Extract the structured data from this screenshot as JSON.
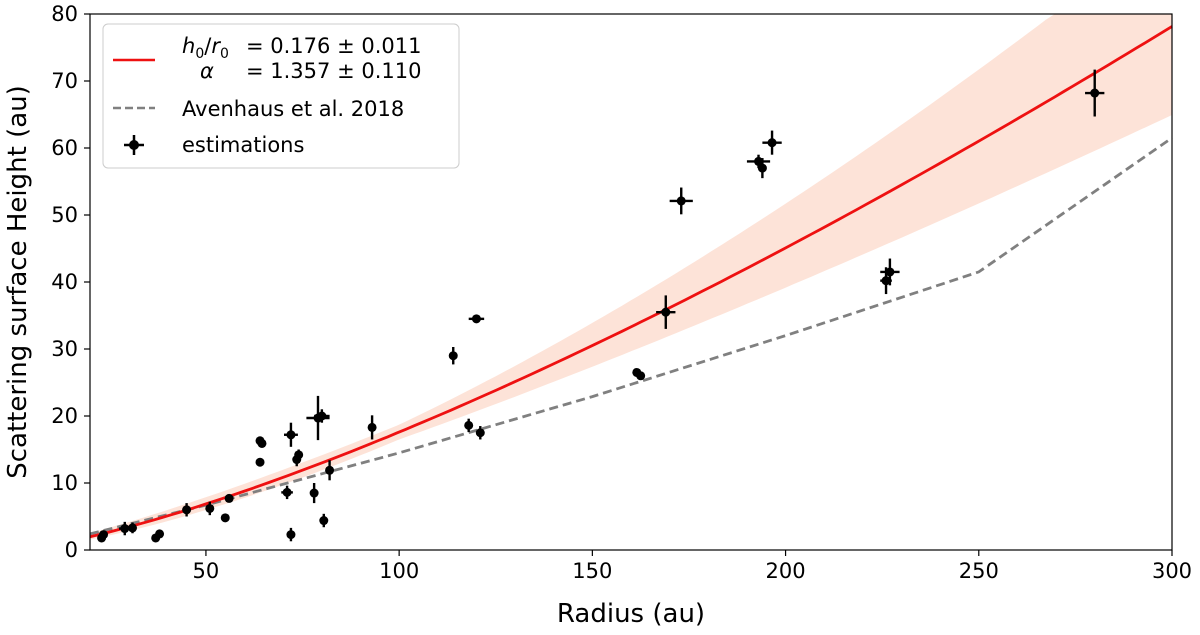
{
  "chart_data": {
    "type": "scatter",
    "xlabel": "Radius (au)",
    "ylabel": "Scattering surface Height (au)",
    "xlim": [
      20,
      300
    ],
    "ylim": [
      0,
      80
    ],
    "x_ticks": [
      50,
      100,
      150,
      200,
      250,
      300
    ],
    "y_ticks": [
      0,
      10,
      20,
      30,
      40,
      50,
      60,
      70,
      80
    ],
    "grid": false,
    "legend_position": "top-left",
    "legend": {
      "fit_line1": "= 0.176 ± 0.011",
      "fit_line2": "= 1.357 ± 0.110",
      "avenhaus": "Avenhaus et al. 2018",
      "estimations": "estimations"
    },
    "colors": {
      "fit": "#ee1111",
      "band": "#fde3d8",
      "avenhaus": "#808080",
      "points": "#000000"
    },
    "series": [
      {
        "name": "fit",
        "kind": "line",
        "h0_r0": 0.176,
        "alpha": 1.357,
        "h0_r0_err": 0.011,
        "alpha_err": 0.11,
        "r0": 100
      },
      {
        "name": "Avenhaus et al. 2018",
        "kind": "dashed-line",
        "x": [
          20,
          50,
          100,
          150,
          200,
          250,
          300
        ],
        "y": [
          2.4,
          6.7,
          14.5,
          22.9,
          32.0,
          41.5,
          61.5
        ]
      },
      {
        "name": "estimations",
        "kind": "errorbar",
        "points": [
          {
            "x": 23,
            "y": 1.8,
            "xerr": 0,
            "yerr": 0.3
          },
          {
            "x": 23.5,
            "y": 2.3,
            "xerr": 0,
            "yerr": 0.3
          },
          {
            "x": 29,
            "y": 3.2,
            "xerr": 1.5,
            "yerr": 1.0
          },
          {
            "x": 31,
            "y": 3.3,
            "xerr": 0.5,
            "yerr": 0.8
          },
          {
            "x": 37,
            "y": 1.8,
            "xerr": 0,
            "yerr": 0.5
          },
          {
            "x": 38,
            "y": 2.4,
            "xerr": 0,
            "yerr": 0.6
          },
          {
            "x": 45,
            "y": 6.0,
            "xerr": 0,
            "yerr": 1.0
          },
          {
            "x": 51,
            "y": 6.2,
            "xerr": 0,
            "yerr": 1.0
          },
          {
            "x": 55,
            "y": 4.8,
            "xerr": 0.8,
            "yerr": 0.3
          },
          {
            "x": 56,
            "y": 7.7,
            "xerr": 0.5,
            "yerr": 0.5
          },
          {
            "x": 64,
            "y": 13.1,
            "xerr": 0,
            "yerr": 0
          },
          {
            "x": 64,
            "y": 16.3,
            "xerr": 0,
            "yerr": 0.6
          },
          {
            "x": 64.5,
            "y": 15.9,
            "xerr": 0,
            "yerr": 0.5
          },
          {
            "x": 71,
            "y": 8.6,
            "xerr": 1.5,
            "yerr": 1.0
          },
          {
            "x": 72,
            "y": 2.3,
            "xerr": 0,
            "yerr": 1.0
          },
          {
            "x": 72,
            "y": 17.2,
            "xerr": 1.8,
            "yerr": 1.8
          },
          {
            "x": 73.5,
            "y": 13.5,
            "xerr": 1.0,
            "yerr": 1.0
          },
          {
            "x": 74,
            "y": 14.2,
            "xerr": 0,
            "yerr": 0.8
          },
          {
            "x": 78,
            "y": 8.5,
            "xerr": 0,
            "yerr": 1.5
          },
          {
            "x": 79,
            "y": 19.7,
            "xerr": 3.0,
            "yerr": 3.3
          },
          {
            "x": 80,
            "y": 20.0,
            "xerr": 2.0,
            "yerr": 1.0
          },
          {
            "x": 80.5,
            "y": 4.4,
            "xerr": 0,
            "yerr": 1.0
          },
          {
            "x": 82,
            "y": 11.9,
            "xerr": 0,
            "yerr": 1.5
          },
          {
            "x": 93,
            "y": 18.3,
            "xerr": 0,
            "yerr": 1.8
          },
          {
            "x": 114,
            "y": 29.0,
            "xerr": 1.0,
            "yerr": 1.3
          },
          {
            "x": 118,
            "y": 18.6,
            "xerr": 0.8,
            "yerr": 1.0
          },
          {
            "x": 120,
            "y": 34.5,
            "xerr": 2.0,
            "yerr": 0.6
          },
          {
            "x": 121,
            "y": 17.5,
            "xerr": 0,
            "yerr": 1.0
          },
          {
            "x": 161.5,
            "y": 26.5,
            "xerr": 0,
            "yerr": 0.5
          },
          {
            "x": 162.5,
            "y": 26.0,
            "xerr": 0,
            "yerr": 0.6
          },
          {
            "x": 169,
            "y": 35.5,
            "xerr": 2.5,
            "yerr": 2.5
          },
          {
            "x": 173,
            "y": 52.1,
            "xerr": 3.0,
            "yerr": 2.0
          },
          {
            "x": 193,
            "y": 58.0,
            "xerr": 3.0,
            "yerr": 1.0
          },
          {
            "x": 194,
            "y": 57.0,
            "xerr": 0,
            "yerr": 1.5
          },
          {
            "x": 196.5,
            "y": 60.8,
            "xerr": 2.5,
            "yerr": 1.8
          },
          {
            "x": 226,
            "y": 40.2,
            "xerr": 1.5,
            "yerr": 2.0
          },
          {
            "x": 227,
            "y": 41.5,
            "xerr": 2.5,
            "yerr": 2.0
          },
          {
            "x": 280,
            "y": 68.2,
            "xerr": 2.5,
            "yerr": 3.5
          }
        ]
      }
    ]
  }
}
